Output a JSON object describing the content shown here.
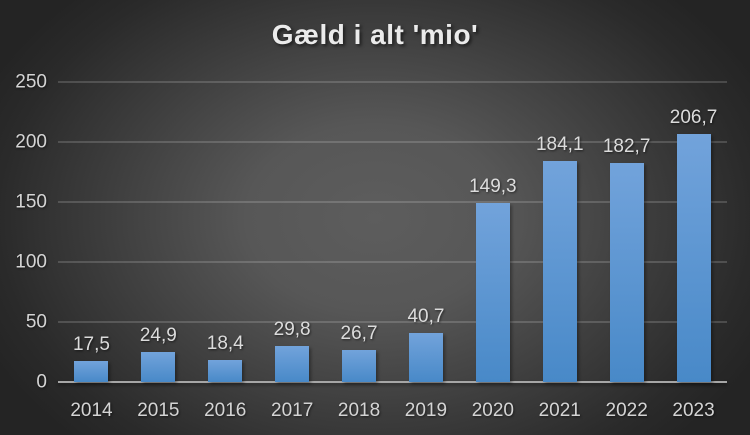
{
  "chart_data": {
    "type": "bar",
    "title": "Gæld i alt 'mio'",
    "categories": [
      "2014",
      "2015",
      "2016",
      "2017",
      "2018",
      "2019",
      "2020",
      "2021",
      "2022",
      "2023"
    ],
    "values": [
      17.5,
      24.9,
      18.4,
      29.8,
      26.7,
      40.7,
      149.3,
      184.1,
      182.7,
      206.7
    ],
    "value_labels": [
      "17,5",
      "24,9",
      "18,4",
      "29,8",
      "26,7",
      "40,7",
      "149,3",
      "184,1",
      "182,7",
      "206,7"
    ],
    "xlabel": "",
    "ylabel": "",
    "ylim": [
      0,
      250
    ],
    "ytick_interval": 50,
    "ytick_labels": [
      "0",
      "50",
      "100",
      "150",
      "200",
      "250"
    ],
    "grid": true,
    "legend": false,
    "decimal_separator": ",",
    "colors": {
      "bar_gradient_top": "#72a3db",
      "bar_gradient_bottom": "#4889c8",
      "bar_base": "#5b9bd5",
      "background_center": "#5d5d5d",
      "background_edge": "#242424",
      "axis_line": "#a6a6a6",
      "gridline": "rgba(255,255,255,0.16)",
      "tick_label": "#d4d4d4",
      "value_label": "#dcdcdc",
      "title": "#ebebeb"
    }
  }
}
